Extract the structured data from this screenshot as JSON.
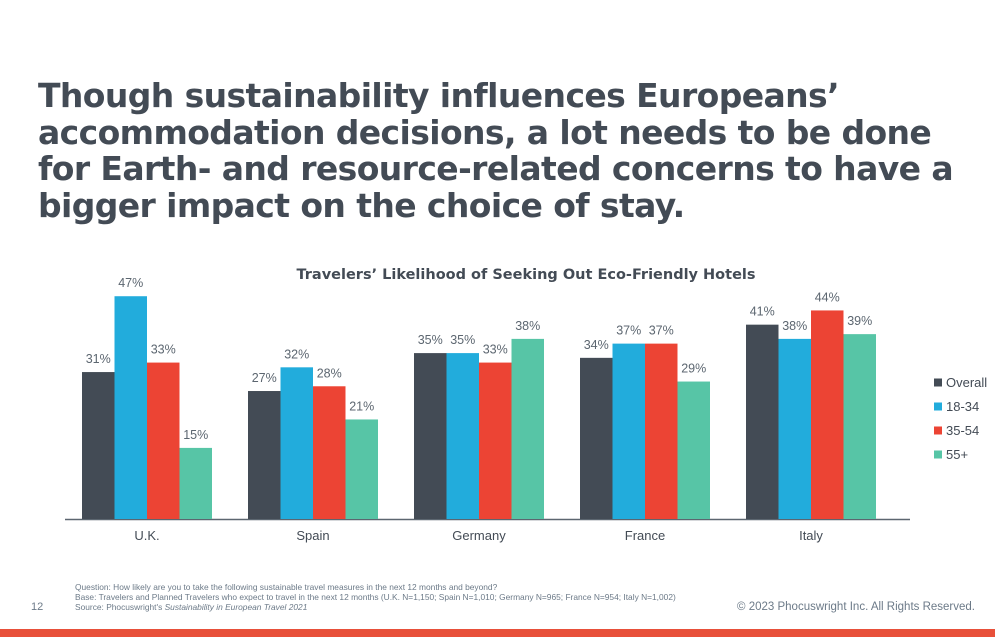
{
  "headline": "Though sustainability influences Europeans’ accommodation decisions, a lot needs to be done for Earth- and resource-related concerns to have a bigger impact on the choice of stay.",
  "colors": {
    "Overall": "#434b55",
    "18-34": "#22acdc",
    "35-54": "#ec4434",
    "55+": "#57c5a6"
  },
  "chart_data": {
    "type": "bar",
    "title": "Travelers’ Likelihood of Seeking Out Eco-Friendly Hotels",
    "categories": [
      "U.K.",
      "Spain",
      "Germany",
      "France",
      "Italy"
    ],
    "series": [
      {
        "name": "Overall",
        "values": [
          31,
          27,
          35,
          34,
          41
        ]
      },
      {
        "name": "18-34",
        "values": [
          47,
          32,
          35,
          37,
          38
        ]
      },
      {
        "name": "35-54",
        "values": [
          33,
          28,
          33,
          37,
          44
        ]
      },
      {
        "name": "55+",
        "values": [
          15,
          21,
          38,
          29,
          39
        ]
      }
    ],
    "value_suffix": "%",
    "ylim": [
      0,
      47
    ],
    "legend": "right",
    "grid": false
  },
  "footnotes": {
    "question": "Question: How likely are you to take the following sustainable travel measures in the next 12 months and beyond?",
    "base": "Base: Travelers and Planned Travelers who expect to travel in the next 12 months (U.K. N=1,150; Spain N=1,010; Germany N=965; France N=954; Italy N=1,002)",
    "source_prefix": "Source: Phocuswright's ",
    "source_title": "Sustainability in European Travel 2021"
  },
  "page_number": "12",
  "copyright": "© 2023 Phocuswright Inc. All Rights Reserved."
}
